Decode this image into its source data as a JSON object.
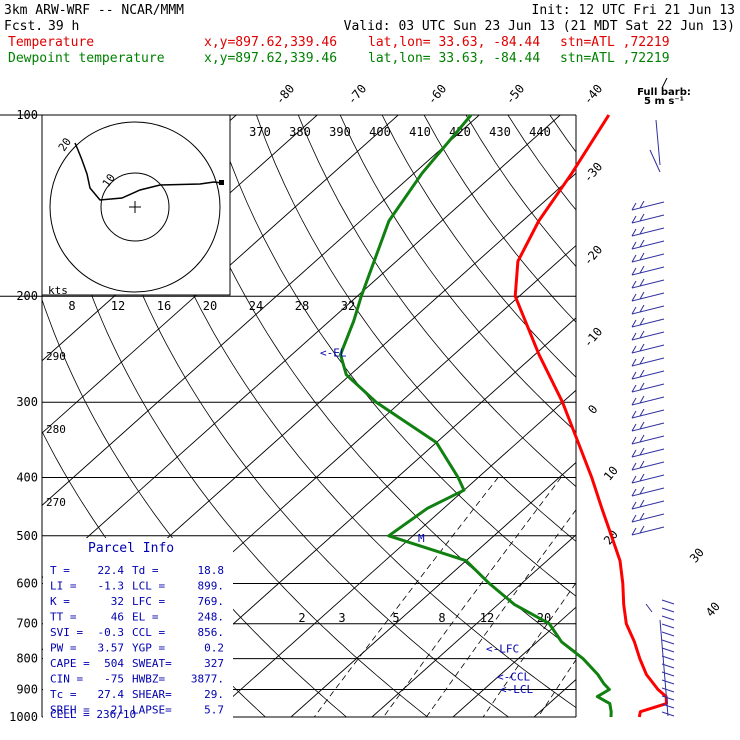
{
  "header": {
    "model": "3km ARW-WRF -- NCAR/MMM",
    "init": "Init: 12 UTC Fri 21 Jun 13",
    "fcst_label": "Fcst.",
    "fcst_value": "39 h",
    "valid": "Valid: 03 UTC Sun 23 Jun 13 (21 MDT Sat 22 Jun 13)"
  },
  "legend": [
    {
      "name": "Temperature",
      "coords": "x,y=897.62,339.46",
      "latlon": "lat,lon= 33.63, -84.44",
      "stn": "stn=ATL ,72219",
      "color": "#e00000"
    },
    {
      "name": "Dewpoint temperature",
      "coords": "x,y=897.62,339.46",
      "latlon": "lat,lon= 33.63, -84.44",
      "stn": "stn=ATL ,72219",
      "color": "#008000"
    }
  ],
  "colors": {
    "temperature": "#ff0000",
    "dewpoint": "#108010",
    "parcel": "#0000b0",
    "grid": "#000000"
  },
  "chart_data": {
    "type": "line",
    "chart": "skew-T log-P sounding",
    "pressure_levels": [
      100,
      200,
      300,
      400,
      500,
      600,
      700,
      800,
      900,
      1000
    ],
    "isotherm_labels": [
      "-80",
      "-70",
      "-60",
      "-50",
      "-40",
      "-30",
      "-20",
      "-10",
      "0",
      "10",
      "20",
      "30",
      "40"
    ],
    "theta_labels": [
      "370",
      "380",
      "390",
      "400",
      "410",
      "420",
      "430",
      "440"
    ],
    "mixing_ratio_labels": [
      "2",
      "3",
      "5",
      "8",
      "12",
      "20"
    ],
    "dry_adiabat_side_labels": [
      "290",
      "280",
      "270"
    ],
    "hodograph": {
      "unit": "kts",
      "x_axis_labels": [
        "8",
        "12",
        "16",
        "20",
        "24",
        "28",
        "32"
      ],
      "ring_labels": [
        "10",
        "20"
      ]
    },
    "series": [
      {
        "name": "Temperature",
        "color": "#ff0000",
        "points": [
          [
            1000,
            23.0
          ],
          [
            980,
            22.4
          ],
          [
            950,
            24.5
          ],
          [
            925,
            23.5
          ],
          [
            900,
            21.5
          ],
          [
            850,
            18.0
          ],
          [
            800,
            15.0
          ],
          [
            750,
            12.0
          ],
          [
            700,
            8.5
          ],
          [
            650,
            5.5
          ],
          [
            600,
            2.5
          ],
          [
            550,
            -1.0
          ],
          [
            500,
            -5.5
          ],
          [
            450,
            -10.5
          ],
          [
            400,
            -16.0
          ],
          [
            350,
            -22.5
          ],
          [
            300,
            -30.0
          ],
          [
            250,
            -39.5
          ],
          [
            200,
            -50.5
          ],
          [
            175,
            -55.0
          ],
          [
            150,
            -58.0
          ],
          [
            125,
            -60.5
          ],
          [
            100,
            -64.0
          ]
        ]
      },
      {
        "name": "Dewpoint temperature",
        "color": "#108010",
        "points": [
          [
            1000,
            19.5
          ],
          [
            980,
            18.8
          ],
          [
            950,
            17.5
          ],
          [
            925,
            15.0
          ],
          [
            900,
            15.5
          ],
          [
            880,
            14.0
          ],
          [
            850,
            12.0
          ],
          [
            800,
            8.0
          ],
          [
            750,
            3.0
          ],
          [
            700,
            -1.0
          ],
          [
            650,
            -8.0
          ],
          [
            600,
            -14.0
          ],
          [
            550,
            -20.0
          ],
          [
            500,
            -33.0
          ],
          [
            450,
            -32.0
          ],
          [
            420,
            -30.0
          ],
          [
            400,
            -32.5
          ],
          [
            350,
            -40.0
          ],
          [
            300,
            -53.0
          ],
          [
            270,
            -60.5
          ],
          [
            250,
            -64.0
          ],
          [
            220,
            -67.0
          ],
          [
            200,
            -69.5
          ],
          [
            150,
            -76.5
          ],
          [
            125,
            -79.0
          ],
          [
            100,
            -81.0
          ]
        ]
      }
    ],
    "annotations": [
      {
        "label": "<-EL",
        "pressure": 248
      },
      {
        "label": "<-LFC",
        "pressure": 769
      },
      {
        "label": "<-CCL",
        "pressure": 856
      },
      {
        "label": "<-LCL",
        "pressure": 899
      }
    ],
    "wind_key": {
      "title": "Full barb:",
      "subtitle": "5 m s⁻¹"
    }
  },
  "parcel_info": {
    "title": "Parcel Info",
    "rows": [
      [
        "T  =",
        "22.4",
        "Td =",
        "18.8"
      ],
      [
        "LI =",
        "-1.3",
        "LCL =",
        "899."
      ],
      [
        "K  =",
        "32",
        "LFC =",
        "769."
      ],
      [
        "TT =",
        "46",
        "EL  =",
        "248."
      ],
      [
        "SVI =",
        "-0.3",
        "CCL =",
        "856."
      ],
      [
        "PW =",
        "3.57",
        "YGP =",
        "0.2"
      ],
      [
        "CAPE =",
        "504",
        "SWEAT=",
        "327"
      ],
      [
        "CIN =",
        "-75",
        "HWBZ=",
        "3877."
      ],
      [
        "Tc =",
        "27.4",
        "SHEAR=",
        "29."
      ],
      [
        "SREH =",
        "21",
        "LAPSE=",
        "5.7"
      ]
    ],
    "cell": "CELL = 236/10"
  }
}
